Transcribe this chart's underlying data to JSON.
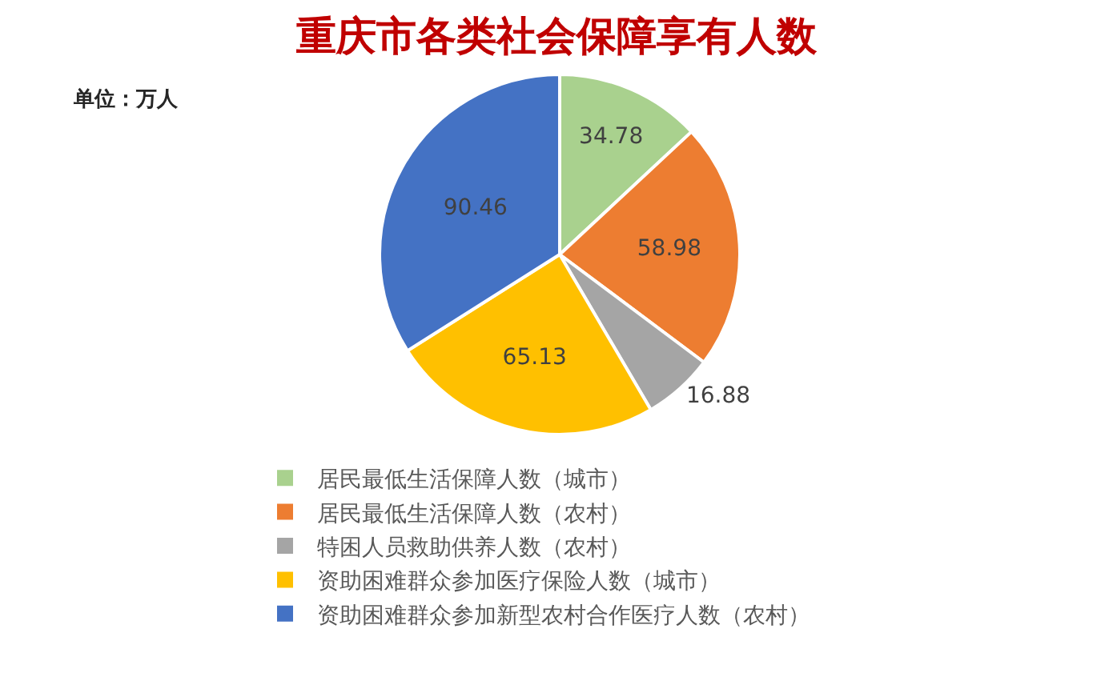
{
  "chart_data": {
    "type": "pie",
    "title": "重庆市各类社会保障享有人数",
    "annotations": [
      "单位：万人"
    ],
    "categories": [
      "居民最低生活保障人数（城市）",
      "居民最低生活保障人数（农村）",
      "特困人员救助供养人数（农村）",
      "资助困难群众参加医疗保险人数（城市）",
      "资助困难群众参加新型农村合作医疗人数（农村）"
    ],
    "values": [
      34.78,
      58.98,
      16.88,
      65.13,
      90.46
    ],
    "colors": [
      "#a9d18e",
      "#ed7d31",
      "#a5a5a5",
      "#ffc000",
      "#4472c4"
    ],
    "data_labels": true,
    "legend": "bottom"
  }
}
